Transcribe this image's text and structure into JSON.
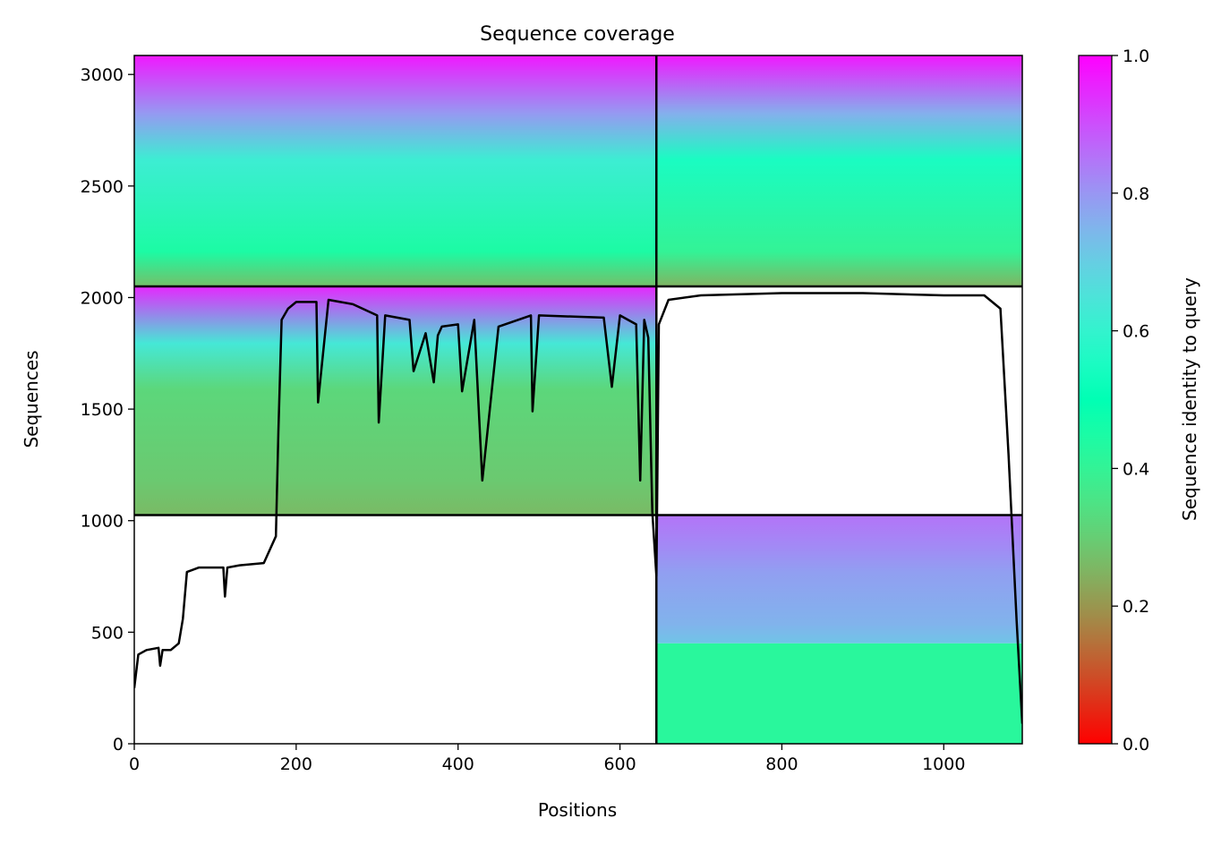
{
  "chart_data": {
    "type": "heatmap",
    "title": "Sequence coverage",
    "xlabel": "Positions",
    "ylabel": "Sequences",
    "xlim": [
      0,
      1097
    ],
    "ylim": [
      0,
      3085
    ],
    "x_ticks": [
      0,
      200,
      400,
      600,
      800,
      1000
    ],
    "y_ticks": [
      0,
      500,
      1000,
      1500,
      2000,
      2500,
      3000
    ],
    "colorbar": {
      "label": "Sequence identity to query",
      "range": [
        0.0,
        1.0
      ],
      "ticks": [
        "0.0",
        "0.2",
        "0.4",
        "0.6",
        "0.8",
        "1.0"
      ],
      "colormap": "rainbow_r"
    },
    "chain_boundaries_x": [
      645
    ],
    "block_boundaries_y": [
      1025,
      2050
    ],
    "blocks": [
      {
        "x_range": [
          0,
          645
        ],
        "y_range": [
          2050,
          3085
        ],
        "identity_top": 0.97,
        "identity_mid": 0.62,
        "identity_bottom": 0.27,
        "note": "paired block, chain 1"
      },
      {
        "x_range": [
          645,
          1097
        ],
        "y_range": [
          2050,
          3085
        ],
        "identity_top": 0.97,
        "identity_mid": 0.55,
        "identity_bottom": 0.25
      },
      {
        "x_range": [
          0,
          645
        ],
        "y_range": [
          1025,
          2050
        ],
        "identity_top": 0.95,
        "identity_mid": 0.32,
        "identity_bottom": 0.26
      },
      {
        "x_range": [
          645,
          1097
        ],
        "y_range": [
          450,
          1025
        ],
        "identity_top": 0.85,
        "identity_bottom": 0.72
      },
      {
        "x_range": [
          645,
          1097
        ],
        "y_range": [
          0,
          450
        ],
        "identity_top": 0.42,
        "identity_bottom": 0.42
      }
    ],
    "coverage_line": {
      "x": [
        0,
        5,
        15,
        30,
        32,
        35,
        45,
        55,
        60,
        65,
        80,
        110,
        112,
        115,
        130,
        160,
        175,
        178,
        182,
        190,
        200,
        225,
        227,
        240,
        270,
        300,
        302,
        310,
        340,
        345,
        360,
        370,
        375,
        380,
        400,
        405,
        420,
        430,
        450,
        490,
        492,
        500,
        580,
        590,
        600,
        610,
        620,
        625,
        630,
        635,
        640,
        645,
        648,
        660,
        700,
        800,
        900,
        1000,
        1050,
        1070,
        1080,
        1090,
        1097
      ],
      "y": [
        250,
        400,
        420,
        430,
        350,
        420,
        420,
        450,
        560,
        770,
        790,
        790,
        660,
        790,
        800,
        810,
        930,
        1400,
        1900,
        1950,
        1980,
        1980,
        1530,
        1990,
        1970,
        1920,
        1440,
        1920,
        1900,
        1670,
        1840,
        1620,
        1830,
        1870,
        1880,
        1580,
        1900,
        1180,
        1870,
        1920,
        1490,
        1920,
        1910,
        1600,
        1920,
        1900,
        1880,
        1180,
        1900,
        1820,
        1040,
        750,
        1880,
        1990,
        2010,
        2020,
        2020,
        2010,
        2010,
        1950,
        1300,
        550,
        90
      ]
    }
  }
}
